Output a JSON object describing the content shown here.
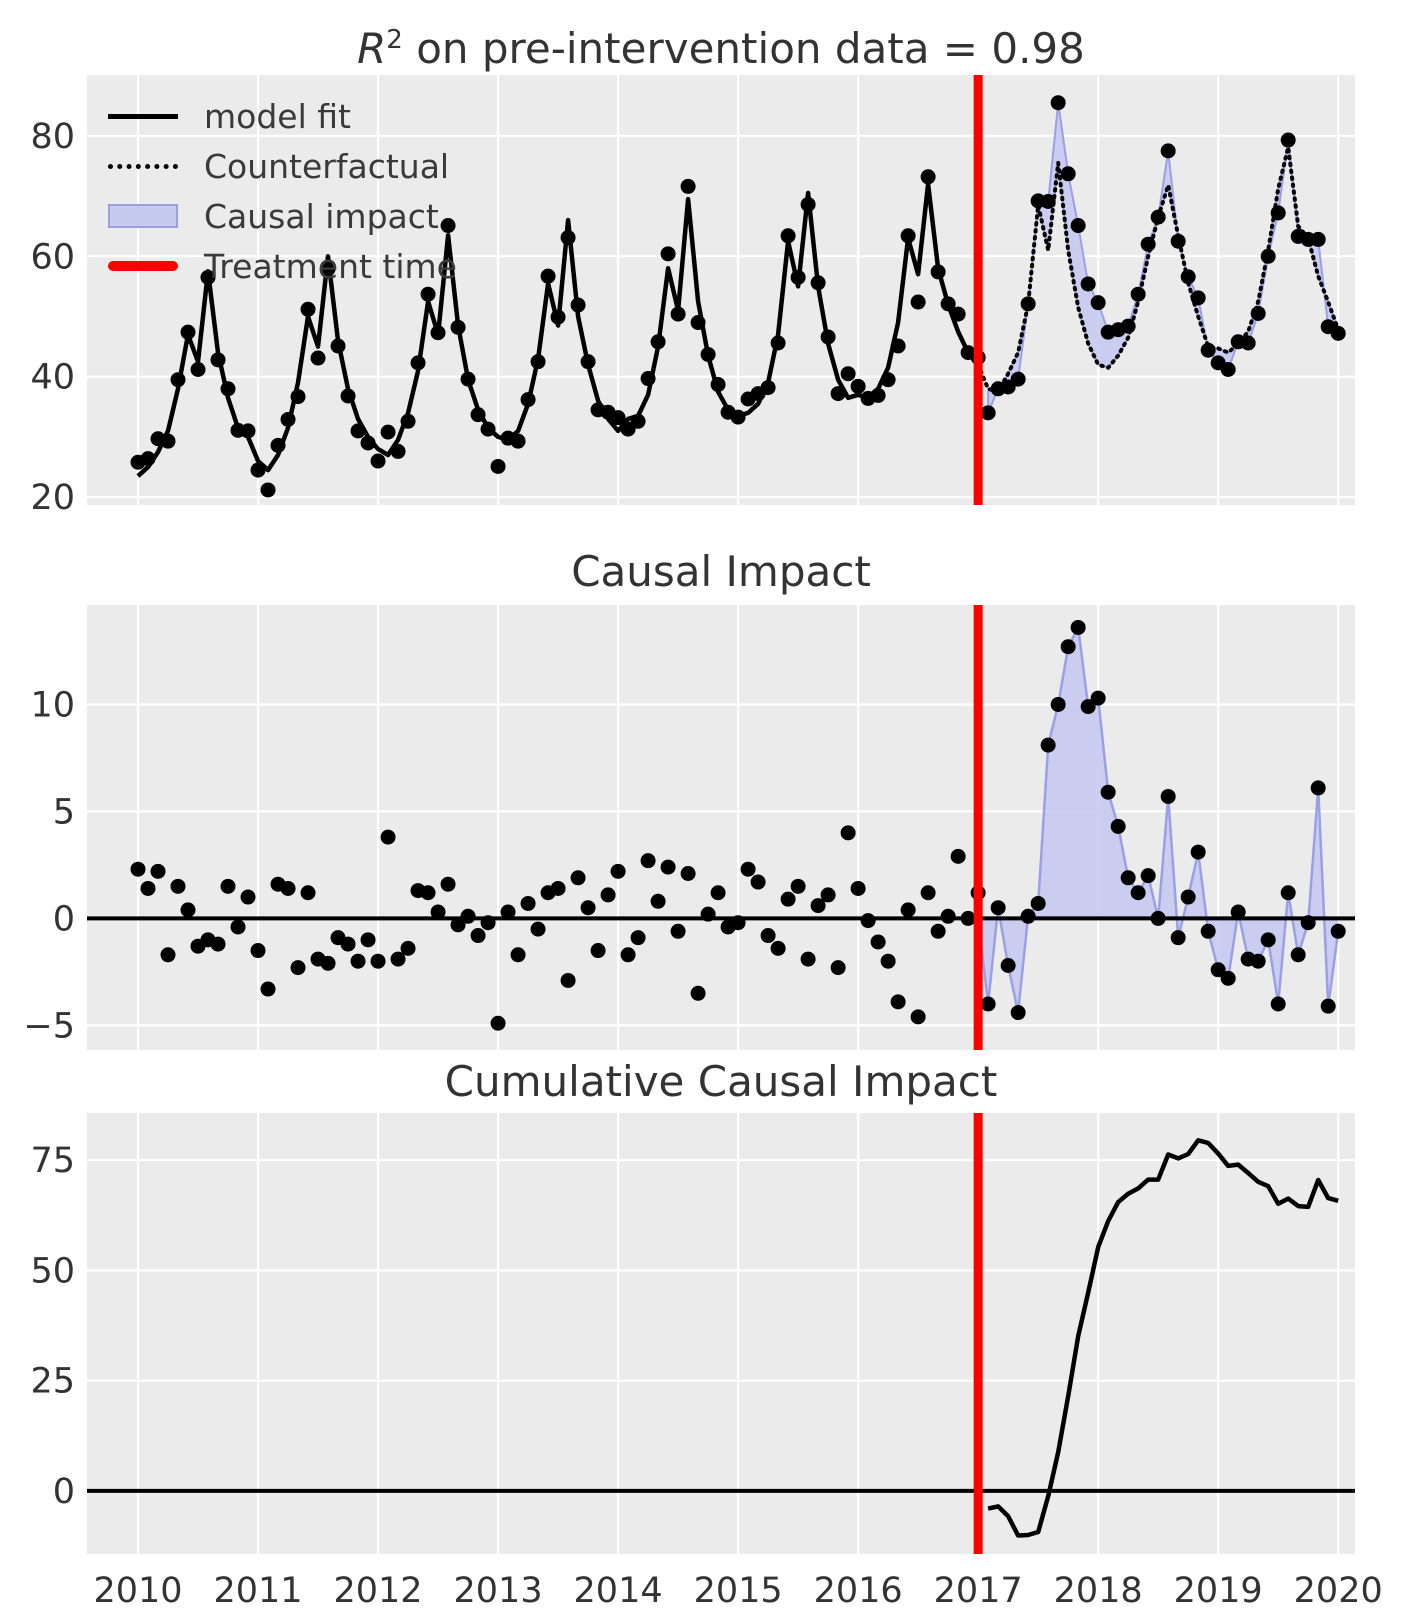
{
  "figure": {
    "bg": "#ffffff",
    "axes_bg": "#ebebeb",
    "grid_color": "#ffffff",
    "title_color": "#333333",
    "tick_color": "#333333"
  },
  "colors": {
    "model_fit": "#000000",
    "observed_points": "#000000",
    "counterfactual": "#000000",
    "impact_fill": "#c7caf0",
    "impact_edge": "#9aa0e6",
    "treatment_line": "#ff0000",
    "zero_line": "#000000"
  },
  "titles": {
    "top_math_var": "R",
    "top_math_sup": "2",
    "top_text": " on pre-intervention data = 0.98",
    "middle": "Causal Impact",
    "bottom": "Cumulative Causal Impact"
  },
  "legend": {
    "items": [
      {
        "label": "model fit",
        "type": "line"
      },
      {
        "label": "Counterfactual",
        "type": "dotted"
      },
      {
        "label": "Causal impact",
        "type": "patch"
      },
      {
        "label": "Treatment time",
        "type": "treatment"
      }
    ]
  },
  "x_axis": {
    "ticks": [
      2010,
      2011,
      2012,
      2013,
      2014,
      2015,
      2016,
      2017,
      2018,
      2019,
      2020
    ],
    "lim": [
      2009.575,
      2020.14
    ],
    "treatment_time": 2017.0
  },
  "chart_data": [
    {
      "id": "model-fit-panel",
      "type": "line",
      "title": "R^2 on pre-intervention data = 0.98",
      "ylim": [
        18.7,
        90.1
      ],
      "yticks": [
        20,
        40,
        60,
        80
      ],
      "pre_start_year": 2010.0,
      "points_per_year": 12,
      "model_fit_pre": [
        23.5,
        25.0,
        27.5,
        31.0,
        38.0,
        47.0,
        42.5,
        57.5,
        44.0,
        36.5,
        31.5,
        30.0,
        26.0,
        24.5,
        27.0,
        31.5,
        39.0,
        50.0,
        45.0,
        60.0,
        46.0,
        38.0,
        33.0,
        30.0,
        28.0,
        27.0,
        29.5,
        34.0,
        41.0,
        52.5,
        47.0,
        63.5,
        48.5,
        39.5,
        34.5,
        31.5,
        30.0,
        29.5,
        31.0,
        35.5,
        43.0,
        55.5,
        48.5,
        66.0,
        50.0,
        42.0,
        36.0,
        33.0,
        31.0,
        33.0,
        33.5,
        37.0,
        45.0,
        58.0,
        51.0,
        69.5,
        52.5,
        43.5,
        37.5,
        34.5,
        33.5,
        34.0,
        35.5,
        39.0,
        47.0,
        62.5,
        55.0,
        70.5,
        55.0,
        45.5,
        39.5,
        36.5,
        37.0,
        36.5,
        38.0,
        41.5,
        49.0,
        63.0,
        57.0,
        72.0,
        58.0,
        52.0,
        47.5,
        44.0,
        42.0
      ],
      "residuals_pre": [
        2.3,
        1.4,
        2.2,
        -1.7,
        1.5,
        0.4,
        -1.3,
        -1.0,
        -1.2,
        1.5,
        -0.4,
        1.0,
        -1.5,
        -3.3,
        1.6,
        1.4,
        -2.3,
        1.2,
        -1.9,
        -2.1,
        -0.9,
        -1.2,
        -2.0,
        -1.0,
        -2.0,
        3.8,
        -1.9,
        -1.4,
        1.3,
        1.2,
        0.3,
        1.6,
        -0.3,
        0.1,
        -0.8,
        -0.2,
        -4.9,
        0.3,
        -1.7,
        0.7,
        -0.5,
        1.2,
        1.4,
        -2.9,
        1.9,
        0.5,
        -1.5,
        1.1,
        2.2,
        -1.7,
        -0.9,
        2.7,
        0.8,
        2.4,
        -0.6,
        2.1,
        -3.5,
        0.2,
        1.2,
        -0.4,
        -0.2,
        2.3,
        1.7,
        -0.8,
        -1.4,
        0.9,
        1.5,
        -1.9,
        0.6,
        1.1,
        -2.3,
        4.0,
        1.4,
        -0.1,
        -1.1,
        -2.0,
        -3.9,
        0.4,
        -4.6,
        1.2,
        -0.6,
        0.1,
        2.9,
        0.0,
        1.2
      ],
      "counterfactual_post": [
        38.0,
        37.5,
        40.5,
        44.0,
        52.0,
        68.5,
        61.0,
        75.5,
        61.0,
        51.5,
        45.5,
        42.0,
        41.5,
        43.5,
        46.5,
        52.5,
        60.0,
        66.5,
        71.8,
        63.4,
        55.6,
        50.0,
        45.0,
        44.7,
        44.0,
        45.5,
        47.5,
        52.5,
        61.0,
        71.2,
        78.1,
        65.0,
        63.0,
        56.7,
        52.4,
        47.8
      ],
      "note": "observed_pre = model_fit_pre + residuals_pre; observed_post = counterfactual_post + pointwise impacts"
    },
    {
      "id": "causal-impact-panel",
      "type": "scatter",
      "title": "Causal Impact",
      "ylim": [
        -6.15,
        14.65
      ],
      "yticks": [
        -5,
        0,
        5,
        10
      ],
      "values_pre_are": "residuals_pre of panel 1",
      "impacts_post": [
        -4.0,
        0.5,
        -2.2,
        -4.4,
        0.1,
        0.7,
        8.1,
        10.0,
        12.7,
        13.6,
        9.9,
        10.3,
        5.9,
        4.3,
        1.9,
        1.2,
        2.0,
        0.0,
        5.7,
        -0.9,
        1.0,
        3.1,
        -0.6,
        -2.4,
        -2.8,
        0.3,
        -1.9,
        -2.0,
        -1.0,
        -4.0,
        1.2,
        -1.7,
        -0.2,
        6.1,
        -4.1,
        -0.6
      ]
    },
    {
      "id": "cumulative-panel",
      "type": "line",
      "title": "Cumulative Causal Impact",
      "ylim": [
        -14.3,
        85.7
      ],
      "yticks": [
        0,
        25,
        50,
        75
      ],
      "cumulative_post": [
        -4.0,
        -3.5,
        -5.7,
        -10.1,
        -10.0,
        -9.3,
        -1.2,
        8.8,
        21.5,
        35.1,
        45.0,
        55.3,
        61.2,
        65.5,
        67.4,
        68.6,
        70.6,
        70.6,
        76.3,
        75.4,
        76.4,
        79.5,
        78.9,
        76.5,
        73.7,
        74.0,
        72.1,
        70.1,
        69.1,
        65.1,
        66.3,
        64.6,
        64.4,
        70.5,
        66.4,
        65.8
      ]
    }
  ]
}
